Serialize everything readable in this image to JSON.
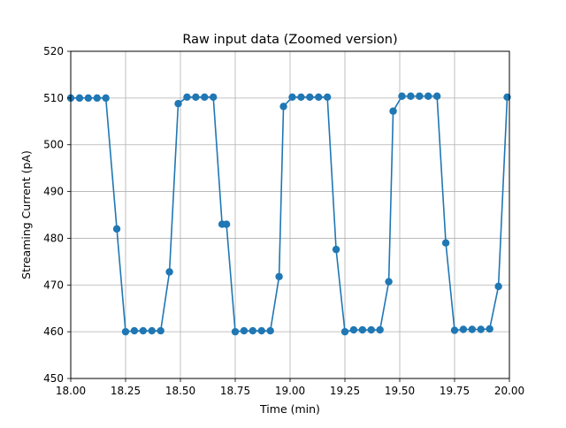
{
  "chart_data": {
    "type": "line",
    "title": "Raw input data (Zoomed version)",
    "xlabel": "Time (min)",
    "ylabel": "Streaming Current (pA)",
    "xlim": [
      18.0,
      20.0
    ],
    "ylim": [
      450,
      520
    ],
    "xticks": [
      18.0,
      18.25,
      18.5,
      18.75,
      19.0,
      19.25,
      19.5,
      19.75,
      20.0
    ],
    "xtick_labels": [
      "18.00",
      "18.25",
      "18.50",
      "18.75",
      "19.00",
      "19.25",
      "19.50",
      "19.75",
      "20.00"
    ],
    "yticks": [
      450,
      460,
      470,
      480,
      490,
      500,
      510,
      520
    ],
    "ytick_labels": [
      "450",
      "460",
      "470",
      "480",
      "490",
      "500",
      "510",
      "520"
    ],
    "grid": true,
    "marker": "circle",
    "color": "#1f77b4",
    "series": [
      {
        "x": [
          18.0,
          18.04,
          18.08,
          18.12,
          18.16,
          18.21,
          18.25,
          18.29,
          18.33,
          18.37,
          18.41,
          18.45,
          18.49,
          18.53,
          18.57,
          18.61,
          18.65,
          18.69,
          18.71,
          18.75,
          18.79,
          18.83,
          18.87,
          18.91,
          18.95,
          18.97,
          19.01,
          19.05,
          19.09,
          19.13,
          19.17,
          19.21,
          19.25,
          19.29,
          19.33,
          19.37,
          19.41,
          19.45,
          19.47,
          19.51,
          19.55,
          19.59,
          19.63,
          19.67,
          19.71,
          19.75,
          19.79,
          19.83,
          19.87,
          19.91,
          19.95,
          19.99
        ],
        "y": [
          510.0,
          510.0,
          510.0,
          510.0,
          510.0,
          482.0,
          460.0,
          460.2,
          460.2,
          460.2,
          460.2,
          472.8,
          508.8,
          510.2,
          510.2,
          510.2,
          510.2,
          483.0,
          483.0,
          460.0,
          460.2,
          460.2,
          460.2,
          460.2,
          471.8,
          508.2,
          510.2,
          510.2,
          510.2,
          510.2,
          510.2,
          477.6,
          460.0,
          460.4,
          460.4,
          460.4,
          460.4,
          470.7,
          507.2,
          510.4,
          510.4,
          510.4,
          510.4,
          510.4,
          479.0,
          460.3,
          460.5,
          460.5,
          460.5,
          460.6,
          469.7,
          510.2
        ]
      }
    ]
  }
}
